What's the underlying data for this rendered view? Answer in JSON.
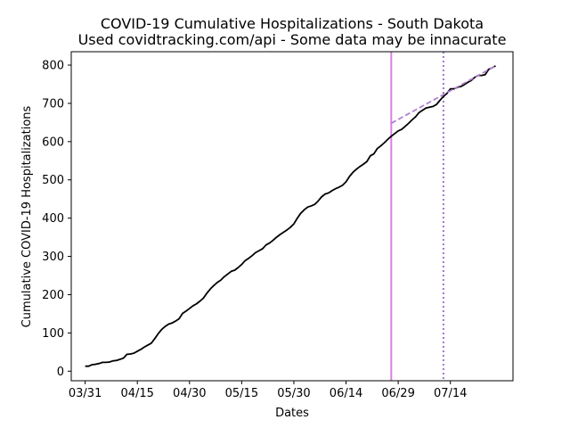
{
  "chart_data": {
    "type": "line",
    "title": "COVID-19 Cumulative Hospitalizations - South Dakota",
    "subtitle": "Used covidtracking.com/api - Some data may be innacurate",
    "xlabel": "Dates",
    "ylabel": "Cumulative COVID-19 Hospitalizations",
    "x_tick_labels": [
      "03/31",
      "04/15",
      "04/30",
      "05/15",
      "05/30",
      "06/14",
      "06/29",
      "07/14"
    ],
    "y_ticks": [
      0,
      100,
      200,
      300,
      400,
      500,
      600,
      700,
      800
    ],
    "xlim": [
      "2020-03-27",
      "2020-08-01"
    ],
    "ylim": [
      -25,
      835
    ],
    "grid": false,
    "colors": {
      "actual": "#000000",
      "projection": "#b07fd4",
      "vline_solid": "#da7fe0",
      "vline_dotted": "#9d78c8"
    },
    "series": [
      {
        "style": "solid",
        "x": [
          "2020-03-31",
          "2020-04-01",
          "2020-04-02",
          "2020-04-03",
          "2020-04-04",
          "2020-04-05",
          "2020-04-06",
          "2020-04-07",
          "2020-04-08",
          "2020-04-09",
          "2020-04-10",
          "2020-04-11",
          "2020-04-12",
          "2020-04-13",
          "2020-04-14",
          "2020-04-15",
          "2020-04-16",
          "2020-04-17",
          "2020-04-18",
          "2020-04-19",
          "2020-04-20",
          "2020-04-21",
          "2020-04-22",
          "2020-04-23",
          "2020-04-24",
          "2020-04-25",
          "2020-04-26",
          "2020-04-27",
          "2020-04-28",
          "2020-04-29",
          "2020-04-30",
          "2020-05-01",
          "2020-05-02",
          "2020-05-03",
          "2020-05-04",
          "2020-05-05",
          "2020-05-06",
          "2020-05-07",
          "2020-05-08",
          "2020-05-09",
          "2020-05-10",
          "2020-05-11",
          "2020-05-12",
          "2020-05-13",
          "2020-05-14",
          "2020-05-15",
          "2020-05-16",
          "2020-05-17",
          "2020-05-18",
          "2020-05-19",
          "2020-05-20",
          "2020-05-21",
          "2020-05-22",
          "2020-05-23",
          "2020-05-24",
          "2020-05-25",
          "2020-05-26",
          "2020-05-27",
          "2020-05-28",
          "2020-05-29",
          "2020-05-30",
          "2020-05-31",
          "2020-06-01",
          "2020-06-02",
          "2020-06-03",
          "2020-06-04",
          "2020-06-05",
          "2020-06-06",
          "2020-06-07",
          "2020-06-08",
          "2020-06-09",
          "2020-06-10",
          "2020-06-11",
          "2020-06-12",
          "2020-06-13",
          "2020-06-14",
          "2020-06-15",
          "2020-06-16",
          "2020-06-17",
          "2020-06-18",
          "2020-06-19",
          "2020-06-20",
          "2020-06-21",
          "2020-06-22",
          "2020-06-23",
          "2020-06-24",
          "2020-06-25",
          "2020-06-26",
          "2020-06-27",
          "2020-06-28",
          "2020-06-29",
          "2020-06-30",
          "2020-07-01",
          "2020-07-02",
          "2020-07-03",
          "2020-07-04",
          "2020-07-05",
          "2020-07-06",
          "2020-07-07",
          "2020-07-08",
          "2020-07-09",
          "2020-07-10",
          "2020-07-11",
          "2020-07-12",
          "2020-07-13",
          "2020-07-14",
          "2020-07-15",
          "2020-07-16",
          "2020-07-17",
          "2020-07-18",
          "2020-07-19",
          "2020-07-20",
          "2020-07-21",
          "2020-07-22",
          "2020-07-23",
          "2020-07-24",
          "2020-07-25",
          "2020-07-26",
          "2020-07-27"
        ],
        "values": [
          13,
          13,
          17,
          18,
          20,
          23,
          23,
          24,
          27,
          28,
          31,
          34,
          44,
          45,
          47,
          52,
          57,
          63,
          68,
          73,
          85,
          98,
          109,
          117,
          123,
          126,
          131,
          137,
          151,
          157,
          164,
          171,
          176,
          183,
          191,
          204,
          215,
          224,
          232,
          238,
          247,
          254,
          261,
          264,
          271,
          279,
          289,
          295,
          302,
          310,
          315,
          320,
          330,
          335,
          342,
          350,
          357,
          363,
          369,
          376,
          385,
          400,
          413,
          422,
          429,
          432,
          436,
          445,
          456,
          463,
          466,
          472,
          477,
          481,
          486,
          495,
          509,
          520,
          528,
          535,
          541,
          548,
          563,
          568,
          582,
          589,
          597,
          606,
          614,
          621,
          628,
          632,
          640,
          648,
          657,
          665,
          676,
          682,
          688,
          690,
          692,
          697,
          708,
          718,
          726,
          738,
          738,
          742,
          744,
          749,
          755,
          760,
          768,
          773,
          773,
          775,
          789,
          793,
          798
        ]
      },
      {
        "style": "dashed",
        "x": [
          "2020-06-27",
          "2020-07-27"
        ],
        "values": [
          648,
          798
        ]
      }
    ],
    "vertical_lines": [
      {
        "x": "2020-06-27",
        "style": "solid"
      },
      {
        "x": "2020-07-12",
        "style": "dotted"
      }
    ]
  }
}
